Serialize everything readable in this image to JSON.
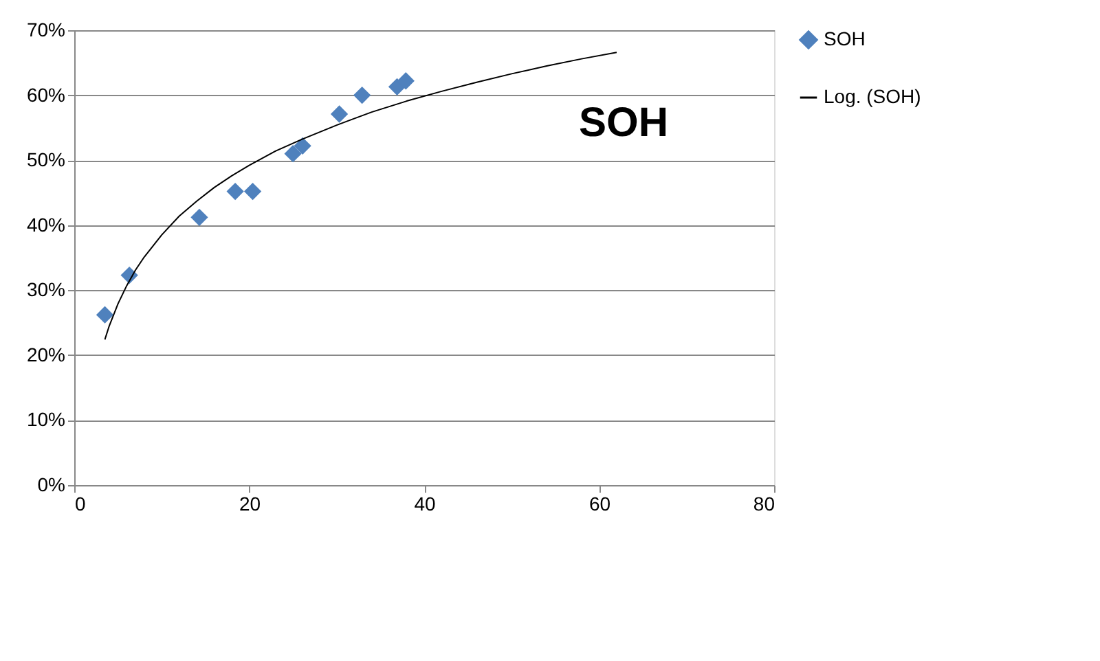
{
  "chart_data": {
    "type": "scatter",
    "title": "SOH",
    "grid": "y",
    "legend": "right",
    "xlim": [
      0,
      80
    ],
    "xticks": [
      0,
      20,
      40,
      60,
      80
    ],
    "ylim": [
      0,
      70
    ],
    "yticks": [
      {
        "value": 0,
        "label": "0%"
      },
      {
        "value": 10,
        "label": "10%"
      },
      {
        "value": 20,
        "label": "20%"
      },
      {
        "value": 30,
        "label": "30%"
      },
      {
        "value": 40,
        "label": "40%"
      },
      {
        "value": 50,
        "label": "50%"
      },
      {
        "value": 60,
        "label": "60%"
      },
      {
        "value": 70,
        "label": "70%"
      }
    ],
    "series": [
      {
        "name": "SOH",
        "marker": "diamond",
        "color": "#4f81bd",
        "x": [
          3.5,
          6.3,
          14.3,
          18.4,
          20.4,
          25,
          26.1,
          30.3,
          32.9,
          36.9,
          37.9
        ],
        "values": [
          26.2,
          32.3,
          41.2,
          45.2,
          45.2,
          51,
          52.2,
          57.1,
          60,
          61.3,
          62.2
        ]
      },
      {
        "name": "Log. (SOH)",
        "type": "line",
        "color": "#000000",
        "marker": "none",
        "x": [
          3.5,
          4,
          5,
          6,
          7,
          8,
          10,
          12,
          14,
          16,
          18,
          20,
          23,
          26,
          30,
          34,
          38,
          42,
          46,
          50,
          54,
          58,
          62
        ],
        "values": [
          22.4,
          24.5,
          27.9,
          30.7,
          33.1,
          35.1,
          38.5,
          41.4,
          43.7,
          45.8,
          47.6,
          49.2,
          51.4,
          53.2,
          55.4,
          57.4,
          59.1,
          60.6,
          62,
          63.3,
          64.5,
          65.6,
          66.6
        ]
      }
    ]
  }
}
